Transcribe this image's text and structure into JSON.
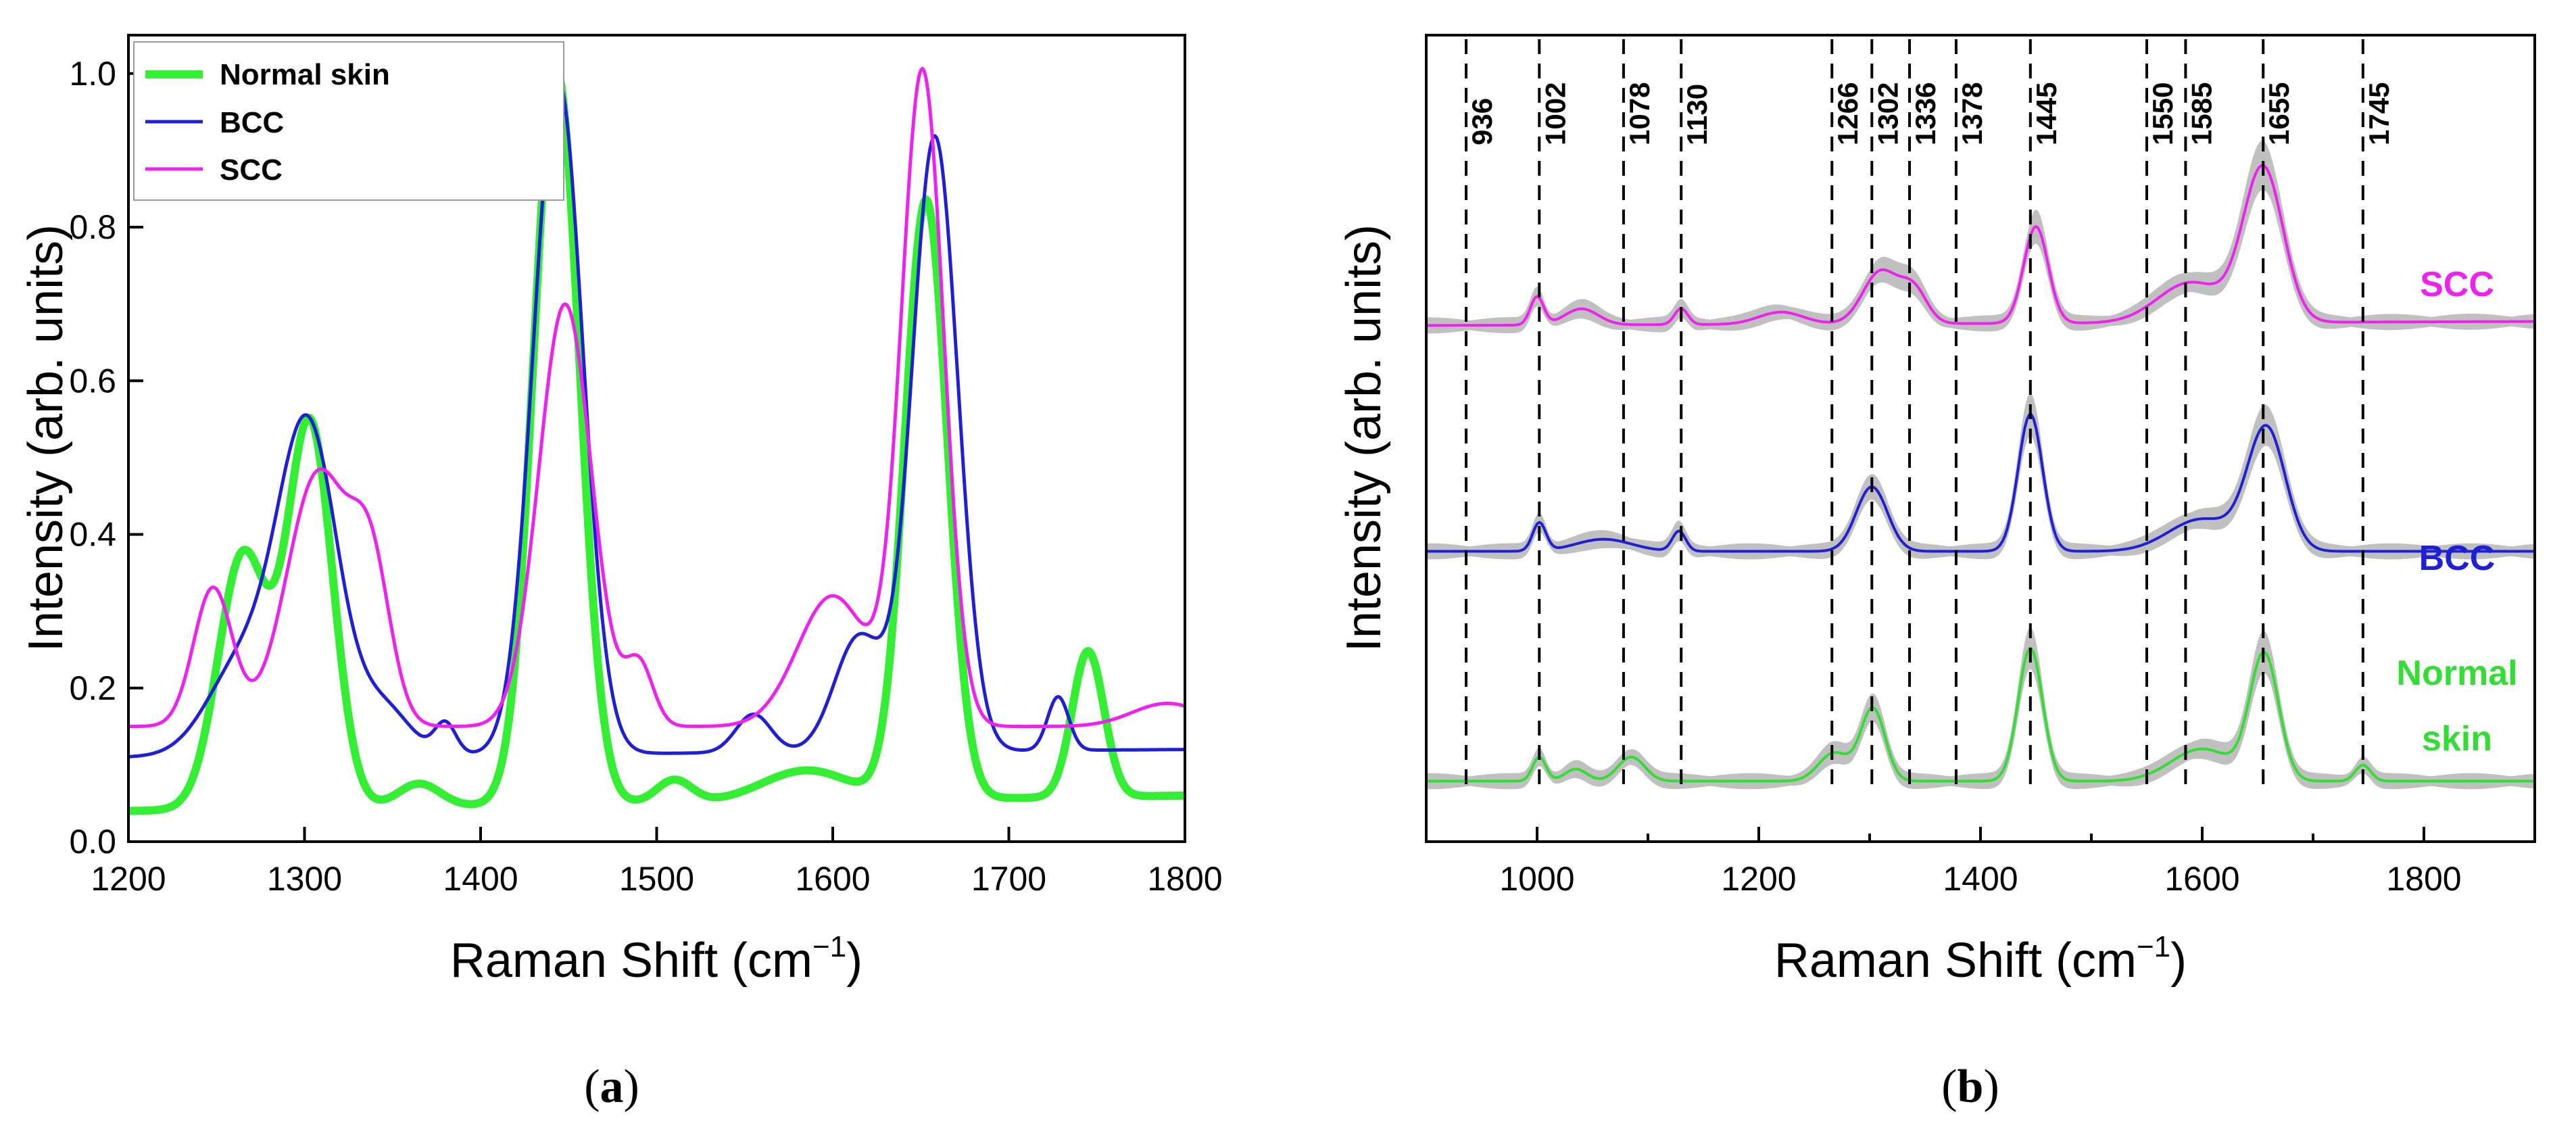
{
  "figure": {
    "panel_a_label_open": "(",
    "panel_a_label_letter": "a",
    "panel_a_label_close": ")",
    "panel_b_label_open": "(",
    "panel_b_label_letter": "b",
    "panel_b_label_close": ")"
  },
  "chart_data": [
    {
      "id": "a",
      "type": "line",
      "title": "",
      "xlabel_main": "Raman Shift (cm",
      "xlabel_sup": "−1",
      "xlabel_close": ")",
      "ylabel": "Intensity (arb. units)",
      "xlim": [
        1200,
        1800
      ],
      "ylim": [
        0,
        1.05
      ],
      "xticks": [
        "1200",
        "1300",
        "1400",
        "1500",
        "1600",
        "1700",
        "1800"
      ],
      "yticks": [
        "0.0",
        "0.2",
        "0.4",
        "0.6",
        "0.8",
        "1.0"
      ],
      "legend_position": "top-left",
      "series": [
        {
          "name": "Normal skin",
          "color": "#33ee33",
          "peaks": [
            [
              1265,
              0.33,
              14
            ],
            [
              1303,
              0.5,
              13
            ],
            [
              1365,
              0.03,
              12
            ],
            [
              1443,
              0.96,
              13
            ],
            [
              1510,
              0.03,
              10
            ],
            [
              1585,
              0.04,
              25
            ],
            [
              1653,
              0.78,
              12
            ],
            [
              1745,
              0.19,
              9
            ]
          ],
          "baseline": [
            [
              1200,
              0.04
            ],
            [
              1800,
              0.06
            ]
          ]
        },
        {
          "name": "BCC",
          "color": "#1f1fd6",
          "peaks": [
            [
              1265,
              0.12,
              20
            ],
            [
              1302,
              0.42,
              17
            ],
            [
              1345,
              0.06,
              15
            ],
            [
              1380,
              0.04,
              6
            ],
            [
              1444,
              0.88,
              14
            ],
            [
              1555,
              0.05,
              10
            ],
            [
              1615,
              0.15,
              14
            ],
            [
              1658,
              0.8,
              13
            ],
            [
              1728,
              0.07,
              6
            ]
          ],
          "baseline": [
            [
              1200,
              0.11
            ],
            [
              1800,
              0.12
            ]
          ]
        },
        {
          "name": "SCC",
          "color": "#ee22ee",
          "peaks": [
            [
              1248,
              0.18,
              11
            ],
            [
              1308,
              0.33,
              18
            ],
            [
              1338,
              0.18,
              11
            ],
            [
              1448,
              0.55,
              15
            ],
            [
              1490,
              0.08,
              8
            ],
            [
              1600,
              0.17,
              20
            ],
            [
              1651,
              0.85,
              12
            ],
            [
              1790,
              0.03,
              20
            ]
          ],
          "baseline": [
            [
              1200,
              0.15
            ],
            [
              1800,
              0.15
            ]
          ]
        }
      ]
    },
    {
      "id": "b",
      "type": "line",
      "title": "",
      "xlabel_main": "Raman Shift (cm",
      "xlabel_sup": "−1",
      "xlabel_close": ")",
      "ylabel": "Intensity (arb. units)",
      "xlim": [
        900,
        1900
      ],
      "ylim": [
        0,
        1
      ],
      "xticks": [
        "1000",
        "1200",
        "1400",
        "1600",
        "1800"
      ],
      "band_positions": [
        936,
        1002,
        1078,
        1130,
        1266,
        1302,
        1336,
        1378,
        1445,
        1550,
        1585,
        1655,
        1745
      ],
      "band_labels": [
        "936",
        "1002",
        "1078",
        "1130",
        "1266",
        "1302",
        "1336",
        "1378",
        "1445",
        "1550",
        "1585",
        "1655",
        "1745"
      ],
      "shaded_band_color": "#c0c0c0",
      "series": [
        {
          "name": "SCC",
          "label_lines": [
            "SCC"
          ],
          "color": "#ee22ee",
          "offset": 0.64,
          "peaks": [
            [
              1000,
              0.035,
              6
            ],
            [
              1040,
              0.02,
              15
            ],
            [
              1130,
              0.02,
              6
            ],
            [
              1220,
              0.015,
              20
            ],
            [
              1310,
              0.065,
              16
            ],
            [
              1340,
              0.04,
              12
            ],
            [
              1450,
              0.12,
              11
            ],
            [
              1590,
              0.05,
              30
            ],
            [
              1655,
              0.19,
              18
            ]
          ],
          "baseline": [
            [
              900,
              0.0
            ],
            [
              1900,
              0.005
            ]
          ]
        },
        {
          "name": "BCC",
          "label_lines": [
            "BCC"
          ],
          "color": "#1f1fd6",
          "offset": 0.355,
          "peaks": [
            [
              1002,
              0.035,
              6
            ],
            [
              1060,
              0.015,
              25
            ],
            [
              1128,
              0.025,
              6
            ],
            [
              1302,
              0.08,
              14
            ],
            [
              1445,
              0.17,
              11
            ],
            [
              1600,
              0.04,
              30
            ],
            [
              1658,
              0.15,
              17
            ]
          ],
          "baseline": [
            [
              900,
              0.005
            ],
            [
              1900,
              0.005
            ]
          ]
        },
        {
          "name": "Normal skin",
          "label_lines": [
            "Normal",
            "skin"
          ],
          "color": "#33dd33",
          "offset": 0.07,
          "peaks": [
            [
              1002,
              0.03,
              6
            ],
            [
              1035,
              0.015,
              10
            ],
            [
              1085,
              0.03,
              12
            ],
            [
              1268,
              0.035,
              14
            ],
            [
              1303,
              0.09,
              11
            ],
            [
              1445,
              0.165,
              11
            ],
            [
              1600,
              0.04,
              28
            ],
            [
              1656,
              0.155,
              13
            ],
            [
              1745,
              0.02,
              7
            ]
          ],
          "baseline": [
            [
              900,
              0.005
            ],
            [
              1900,
              0.005
            ]
          ]
        }
      ]
    }
  ]
}
